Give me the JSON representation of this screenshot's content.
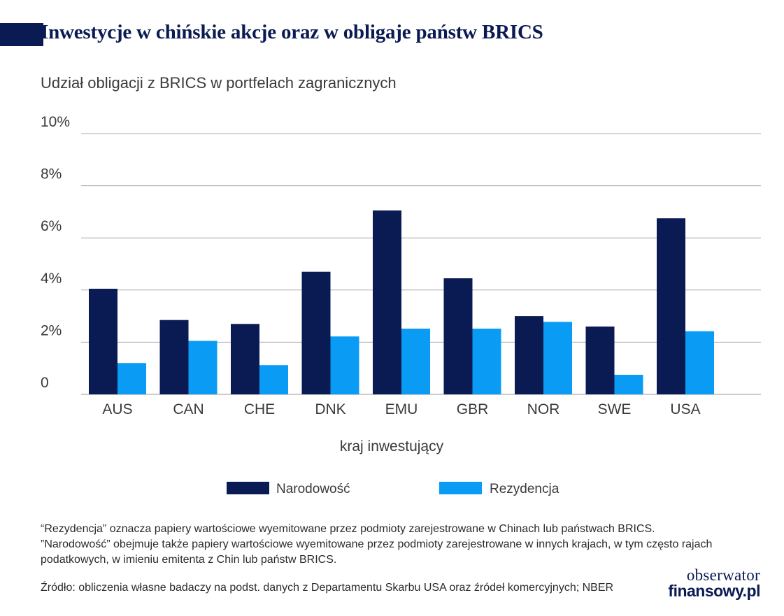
{
  "title": "Inwestycje w chińskie akcje oraz w obligaje państw BRICS",
  "chart_data": {
    "type": "bar",
    "subtitle": "Udział obligacji z BRICS w portfelach zagranicznych",
    "categories": [
      "AUS",
      "CAN",
      "CHE",
      "DNK",
      "EMU",
      "GBR",
      "NOR",
      "SWE",
      "USA"
    ],
    "series": [
      {
        "name": "Narodowość",
        "color": "#0a1a52",
        "values": [
          4.05,
          2.85,
          2.7,
          4.7,
          7.05,
          4.45,
          3.0,
          2.6,
          6.75
        ]
      },
      {
        "name": "Rezydencja",
        "color": "#0a9cf5",
        "values": [
          1.2,
          2.05,
          1.12,
          2.22,
          2.52,
          2.52,
          2.78,
          0.75,
          2.42
        ]
      }
    ],
    "yticks": [
      {
        "value": 0,
        "label": "0"
      },
      {
        "value": 2,
        "label": "2%"
      },
      {
        "value": 4,
        "label": "4%"
      },
      {
        "value": 6,
        "label": "6%"
      },
      {
        "value": 8,
        "label": "8%"
      },
      {
        "value": 10,
        "label": "10%"
      }
    ],
    "ylim": [
      0,
      10
    ],
    "xlabel": "kraj inwestujący",
    "ylabel": "",
    "grid": true,
    "legend_position": "bottom"
  },
  "footnotes": [
    "“Rezydencja” oznacza papiery wartościowe wyemitowane przez podmioty zarejestrowane w Chinach lub państwach BRICS.",
    "”Narodowość” obejmuje także papiery wartościowe wyemitowane przez podmioty zarejestrowane w innych krajach, w tym często rajach podatkowych, w imieniu emitenta z Chin lub państw BRICS."
  ],
  "source": "Źródło: obliczenia własne badaczy na podst. danych z Departamentu Skarbu USA oraz źródeł komercyjnych; NBER",
  "logo": {
    "line1": "obserwator",
    "line2": "finansowy.pl"
  }
}
